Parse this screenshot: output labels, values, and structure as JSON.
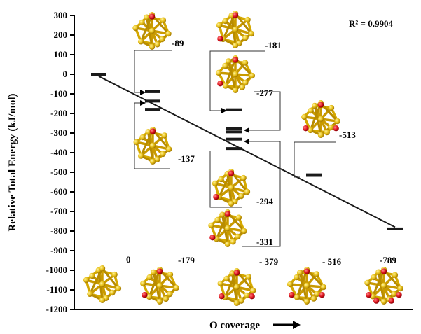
{
  "chart_data": {
    "type": "scatter",
    "ylabel": "Relative Total Energy (kJ/mol)",
    "xlabel": "O coverage",
    "ylim": [
      -1200,
      300
    ],
    "yticks": [
      300,
      200,
      100,
      0,
      -100,
      -200,
      -300,
      -400,
      -500,
      -600,
      -700,
      -800,
      -900,
      -1000,
      -1100,
      -1200
    ],
    "r_squared_label": "R² = 0.9904",
    "x_ticks_shown": false,
    "grid": false,
    "coverage_levels": [
      0,
      1,
      2,
      3,
      4
    ],
    "energy_levels": [
      {
        "coverage": 0,
        "energy": 0,
        "label": "0"
      },
      {
        "coverage": 1,
        "energy": -89,
        "label": "-89"
      },
      {
        "coverage": 1,
        "energy": -137,
        "label": "-137"
      },
      {
        "coverage": 1,
        "energy": -179,
        "label": "-179"
      },
      {
        "coverage": 2,
        "energy": -181,
        "label": "-181"
      },
      {
        "coverage": 2,
        "energy": -277,
        "label": "-277"
      },
      {
        "coverage": 2,
        "energy": -294,
        "label": "-294"
      },
      {
        "coverage": 2,
        "energy": -331,
        "label": "-331"
      },
      {
        "coverage": 2,
        "energy": -379,
        "label": "- 379"
      },
      {
        "coverage": 3,
        "energy": -513,
        "label": "-513"
      },
      {
        "coverage": 3,
        "energy": -516,
        "label": "- 516"
      },
      {
        "coverage": 4,
        "energy": -789,
        "label": "-789"
      }
    ],
    "fit_line": {
      "from": {
        "coverage": 0,
        "energy": -10
      },
      "to": {
        "coverage": 4,
        "energy": -780
      }
    },
    "colors": {
      "bar": "#1a1a1a",
      "line": "#1a1a1a",
      "gold": "#e8c21c",
      "gold_dark": "#a67c00",
      "oxygen": "#e0161f"
    }
  }
}
